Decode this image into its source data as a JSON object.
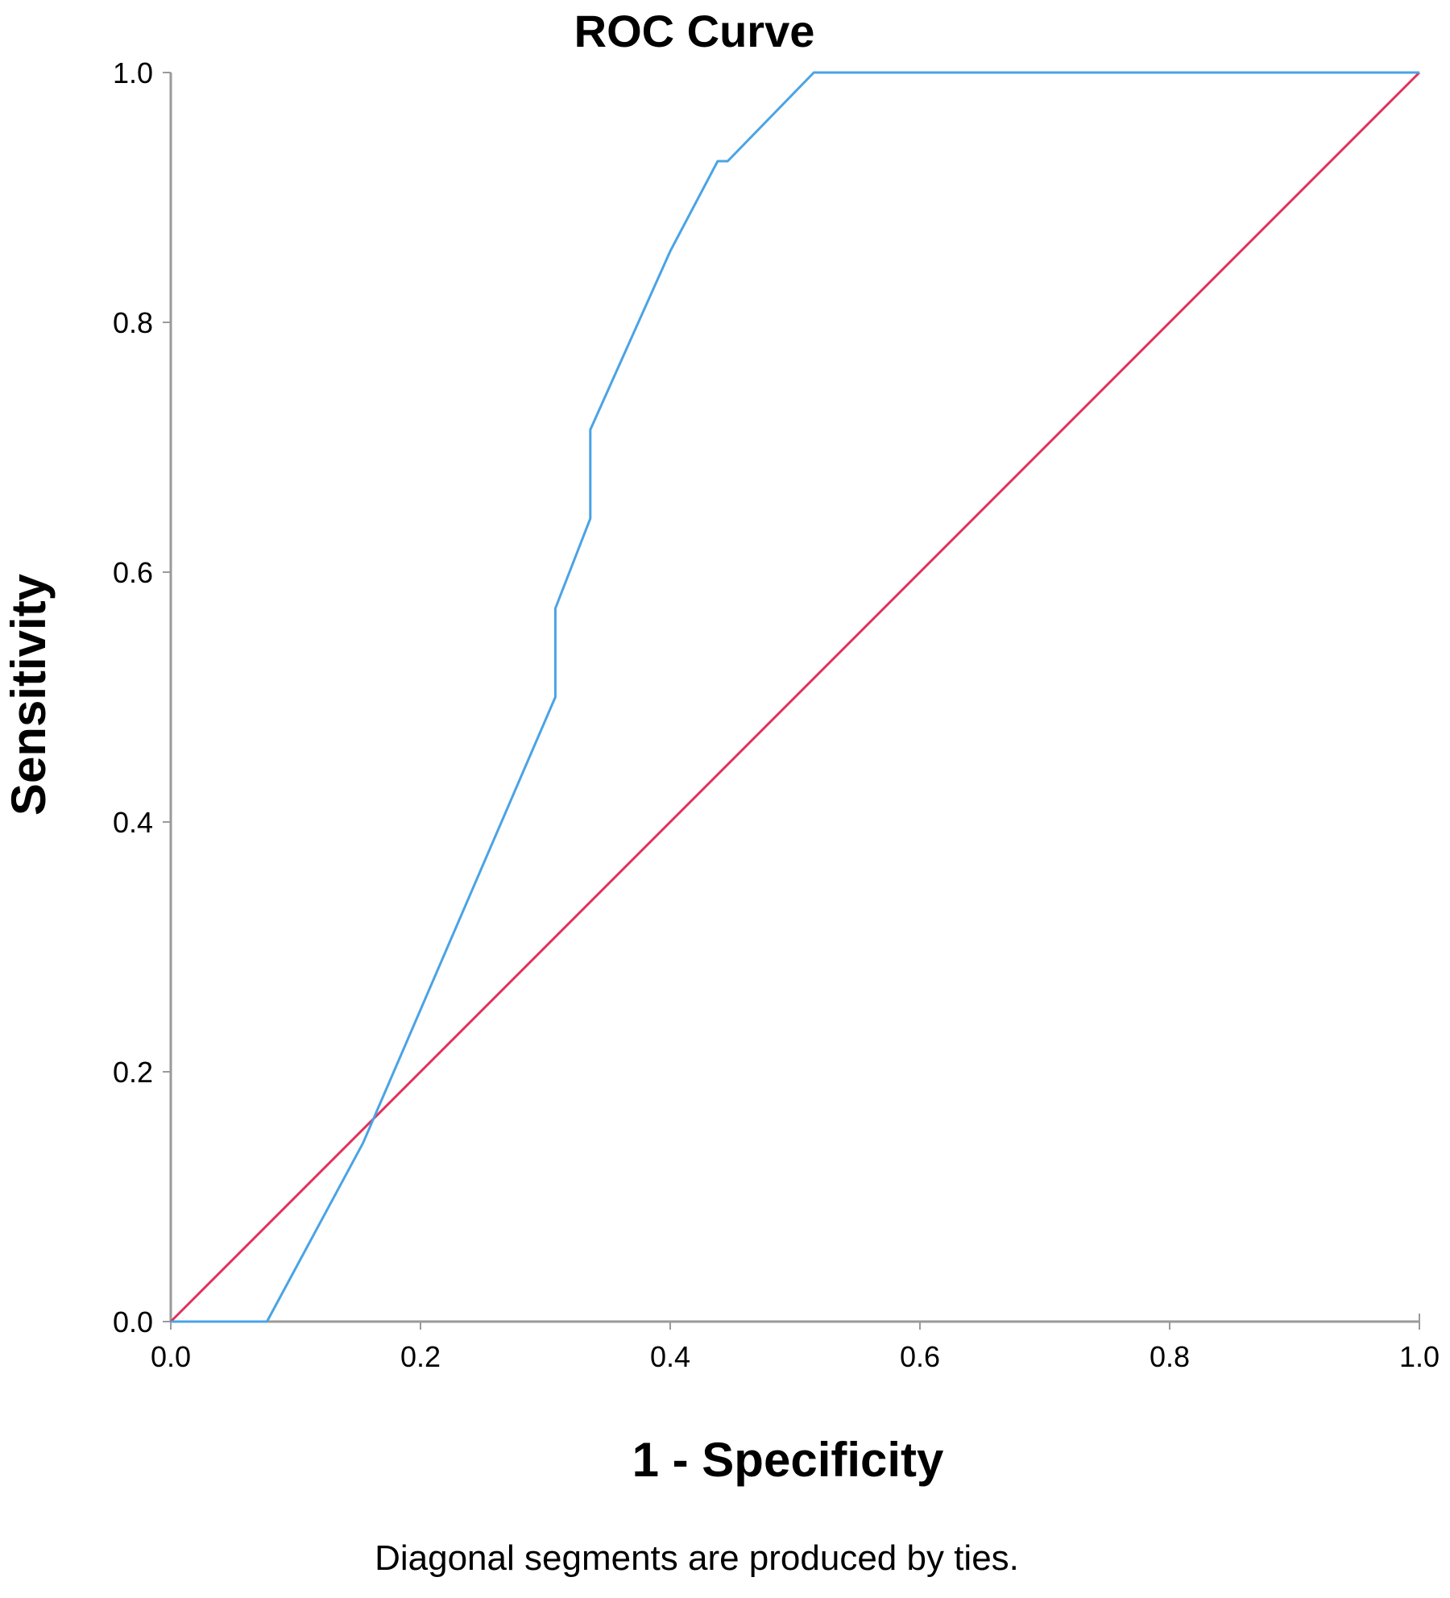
{
  "chart_data": {
    "type": "line",
    "title": "ROC Curve",
    "xlabel": "1 - Specificity",
    "ylabel": "Sensitivity",
    "footnote": "Diagonal segments are produced by ties.",
    "xlim": [
      0,
      1
    ],
    "ylim": [
      0,
      1
    ],
    "x_ticks": [
      "0.0",
      "0.2",
      "0.4",
      "0.6",
      "0.8",
      "1.0"
    ],
    "y_ticks": [
      "0.0",
      "0.2",
      "0.4",
      "0.6",
      "0.8",
      "1.0"
    ],
    "grid": false,
    "legend": "none",
    "series": [
      {
        "color": "#4aa3e6",
        "x": [
          0.0,
          0.077,
          0.154,
          0.308,
          0.308,
          0.336,
          0.336,
          0.4,
          0.438,
          0.446,
          0.515,
          1.0
        ],
        "y": [
          0.0,
          0.0,
          0.143,
          0.5,
          0.571,
          0.643,
          0.714,
          0.857,
          0.929,
          0.929,
          1.0,
          1.0
        ]
      },
      {
        "color": "#e0325a",
        "x": [
          0.0,
          1.0
        ],
        "y": [
          0.0,
          1.0
        ]
      }
    ]
  }
}
